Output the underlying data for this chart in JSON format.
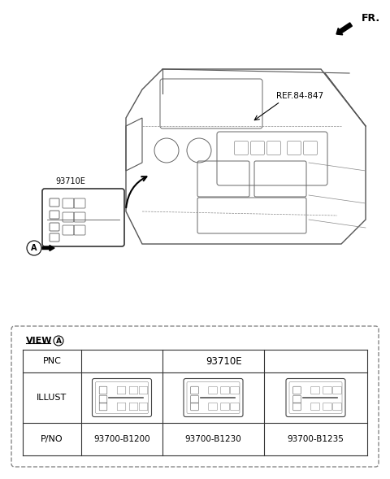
{
  "bg_color": "#ffffff",
  "fr_label": "FR.",
  "ref_label": "REF.84-847",
  "part_label": "93710E",
  "view_label": "VIEW",
  "view_circle": "A",
  "pnc_label": "PNC",
  "illust_label": "ILLUST",
  "pno_label": "P/NO",
  "part_numbers": [
    "93700-B1200",
    "93700-B1230",
    "93700-B1235"
  ],
  "title": "93710E",
  "callout_a": "A"
}
